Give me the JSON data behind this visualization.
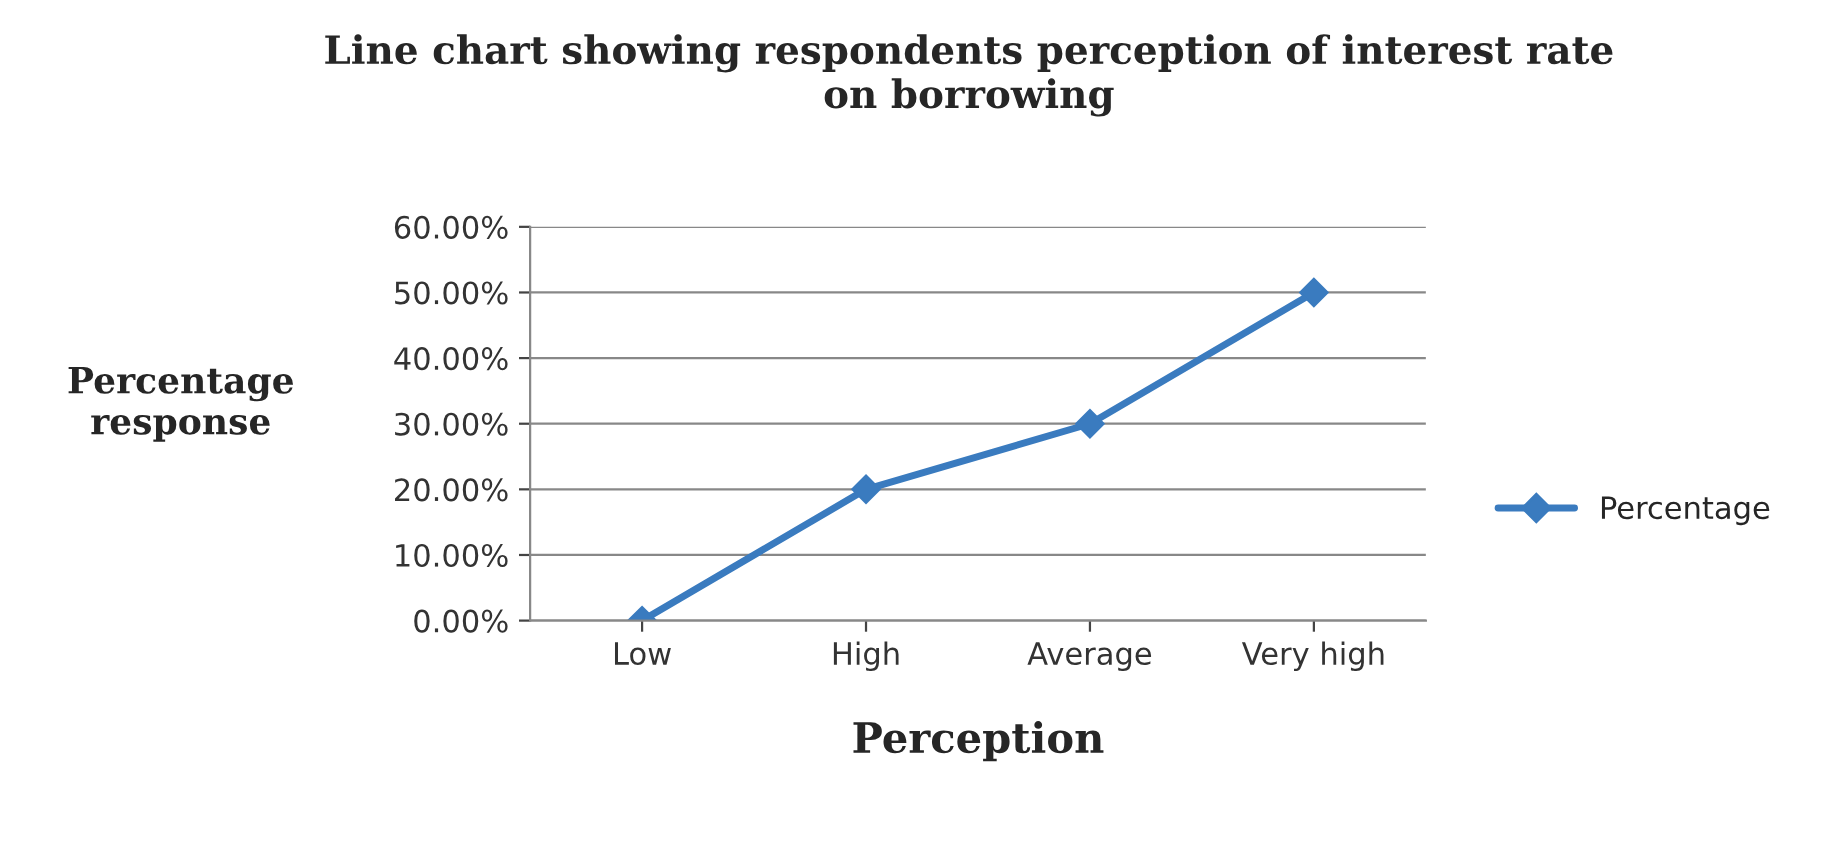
{
  "chart_data": {
    "type": "line",
    "title": "Line chart showing respondents perception of interest rate\non borrowing",
    "xlabel": "Perception",
    "ylabel": "Percentage\nresponse",
    "categories": [
      "Low",
      "High",
      "Average",
      "Very high"
    ],
    "series": [
      {
        "name": "Percentage",
        "color": "#3a7bbf",
        "values": [
          0,
          20,
          30,
          50
        ]
      }
    ],
    "ylim": [
      0,
      60
    ],
    "yticks": [
      {
        "value": 0,
        "label": "0.00%"
      },
      {
        "value": 10,
        "label": "10.00%"
      },
      {
        "value": 20,
        "label": "20.00%"
      },
      {
        "value": 30,
        "label": "30.00%"
      },
      {
        "value": 40,
        "label": "40.00%"
      },
      {
        "value": 50,
        "label": "50.00%"
      },
      {
        "value": 60,
        "label": "60.00%"
      }
    ],
    "grid": "y",
    "legend": "right",
    "marker": "diamond",
    "line_style": "solid"
  }
}
